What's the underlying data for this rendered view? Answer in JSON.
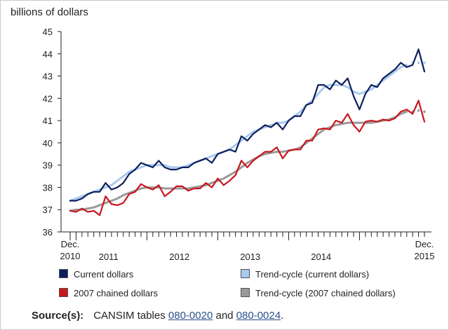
{
  "y_unit": "billions of dollars",
  "chart_data": {
    "type": "line",
    "xlabel": "",
    "ylabel": "billions of dollars",
    "ylim": [
      36,
      45
    ],
    "yticks": [
      36,
      37,
      38,
      39,
      40,
      41,
      42,
      43,
      44,
      45
    ],
    "x_period": "monthly, Dec. 2010 to Dec. 2015",
    "x_tick_labels": [
      {
        "text": "Dec.\n2010",
        "month_index": 0
      },
      {
        "text": "2011",
        "month_index": 6.5
      },
      {
        "text": "2012",
        "month_index": 18.5
      },
      {
        "text": "2013",
        "month_index": 30.5
      },
      {
        "text": "2014",
        "month_index": 42.5
      },
      {
        "text": "Dec.\n2015",
        "month_index": 60
      }
    ],
    "grid": false,
    "series": [
      {
        "name": "Current dollars",
        "color": "#0d1f5c",
        "values": [
          37.4,
          37.4,
          37.5,
          37.7,
          37.8,
          37.8,
          38.2,
          37.9,
          38.0,
          38.2,
          38.6,
          38.8,
          39.1,
          39.0,
          38.9,
          39.2,
          38.9,
          38.8,
          38.8,
          38.9,
          38.9,
          39.1,
          39.2,
          39.3,
          39.1,
          39.5,
          39.6,
          39.7,
          39.6,
          40.3,
          40.1,
          40.4,
          40.6,
          40.8,
          40.7,
          40.9,
          40.6,
          41.0,
          41.2,
          41.2,
          41.7,
          41.8,
          42.6,
          42.6,
          42.4,
          42.8,
          42.6,
          42.9,
          42.1,
          41.5,
          42.2,
          42.6,
          42.5,
          42.9,
          43.1,
          43.3,
          43.6,
          43.4,
          43.5,
          44.2,
          43.2
        ]
      },
      {
        "name": "Trend-cycle (current dollars)",
        "color": "#a9c9ef",
        "values": [
          37.4,
          37.5,
          37.6,
          37.7,
          37.8,
          37.9,
          38.0,
          38.1,
          38.3,
          38.5,
          38.7,
          38.8,
          38.9,
          39.0,
          39.0,
          39.0,
          39.0,
          38.9,
          38.9,
          38.9,
          39.0,
          39.1,
          39.2,
          39.3,
          39.4,
          39.5,
          39.6,
          39.7,
          39.9,
          40.1,
          40.3,
          40.5,
          40.6,
          40.7,
          40.8,
          40.9,
          40.9,
          41.0,
          41.2,
          41.4,
          41.7,
          41.9,
          42.2,
          42.5,
          42.6,
          42.6,
          42.6,
          42.5,
          42.3,
          42.2,
          42.3,
          42.4,
          42.6,
          42.8,
          43.0,
          43.2,
          43.4,
          43.5,
          43.6,
          43.6,
          43.6
        ],
        "dotted_from_index": 57
      },
      {
        "name": "2007 chained dollars",
        "color": "#c8161d",
        "values": [
          36.95,
          36.9,
          37.05,
          36.9,
          36.95,
          36.75,
          37.6,
          37.25,
          37.2,
          37.3,
          37.7,
          37.8,
          38.15,
          38.0,
          37.9,
          38.1,
          37.6,
          37.8,
          38.05,
          38.05,
          37.85,
          37.95,
          37.95,
          38.2,
          38.0,
          38.4,
          38.1,
          38.3,
          38.55,
          39.2,
          38.9,
          39.2,
          39.4,
          39.6,
          39.6,
          39.8,
          39.3,
          39.65,
          39.7,
          39.7,
          40.1,
          40.1,
          40.6,
          40.65,
          40.6,
          41.0,
          40.9,
          41.3,
          40.8,
          40.5,
          40.95,
          41.0,
          40.95,
          41.05,
          41.0,
          41.1,
          41.4,
          41.5,
          41.3,
          41.9,
          40.95
        ]
      },
      {
        "name": "Trend-cycle (2007 chained dollars)",
        "color": "#9a9a9a",
        "values": [
          36.95,
          37.0,
          37.0,
          37.05,
          37.1,
          37.2,
          37.3,
          37.4,
          37.5,
          37.65,
          37.75,
          37.85,
          37.95,
          38.0,
          38.0,
          38.0,
          37.95,
          37.95,
          37.95,
          37.95,
          37.95,
          38.0,
          38.05,
          38.1,
          38.2,
          38.3,
          38.4,
          38.55,
          38.7,
          38.9,
          39.1,
          39.25,
          39.4,
          39.5,
          39.55,
          39.6,
          39.6,
          39.65,
          39.7,
          39.8,
          40.0,
          40.2,
          40.4,
          40.6,
          40.7,
          40.8,
          40.85,
          40.9,
          40.9,
          40.9,
          40.9,
          40.9,
          40.95,
          41.0,
          41.05,
          41.15,
          41.3,
          41.4,
          41.4,
          41.45,
          41.4
        ],
        "dotted_from_index": 57
      }
    ]
  },
  "legend": [
    {
      "label": "Current dollars",
      "color": "#0d1f5c"
    },
    {
      "label": "Trend-cycle (current dollars)",
      "color": "#a9c9ef"
    },
    {
      "label": "2007 chained dollars",
      "color": "#c8161d"
    },
    {
      "label": "Trend-cycle (2007 chained dollars)",
      "color": "#9a9a9a"
    }
  ],
  "source": {
    "label": "Source(s):",
    "prefix": "CANSIM tables",
    "link1": "080-0020",
    "middle": "and",
    "link2": "080-0024",
    "suffix": "."
  }
}
